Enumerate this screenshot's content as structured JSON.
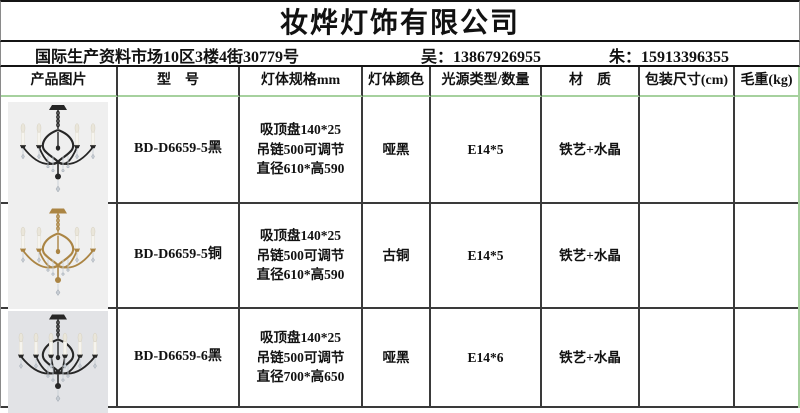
{
  "company": {
    "title": "妆烨灯饰有限公司"
  },
  "contact": {
    "address": "国际生产资料市场10区3楼4街30779号",
    "phone_wu": "吴：13867926955",
    "phone_zhu": "朱：15913396355"
  },
  "table": {
    "headers": [
      "产品图片",
      "型　号",
      "灯体规格mm",
      "灯体颜色",
      "光源类型/数量",
      "材　质",
      "包装尺寸(cm)",
      "毛重(kg)"
    ]
  },
  "products": [
    {
      "model": "BD-D6659-5黑",
      "spec_line1": "吸顶盘140*25",
      "spec_line2": "吊链500可调节",
      "spec_line3": "直径610*高590",
      "body_color": "哑黑",
      "light_source": "E14*5",
      "material": "铁艺+水晶",
      "package_size": "",
      "gross_weight": "",
      "image": {
        "name": "black-iron-crystal-chandelier-5-light",
        "frame_color": "#262626",
        "bg_color": "#efefef",
        "lights": 5
      }
    },
    {
      "model": "BD-D6659-5铜",
      "spec_line1": "吸顶盘140*25",
      "spec_line2": "吊链500可调节",
      "spec_line3": "直径610*高590",
      "body_color": "古铜",
      "light_source": "E14*5",
      "material": "铁艺+水晶",
      "package_size": "",
      "gross_weight": "",
      "image": {
        "name": "bronze-iron-crystal-chandelier-5-light",
        "frame_color": "#ab8544",
        "bg_color": "#efefef",
        "lights": 5
      }
    },
    {
      "model": "BD-D6659-6黑",
      "spec_line1": "吸顶盘140*25",
      "spec_line2": "吊链500可调节",
      "spec_line3": "直径700*高650",
      "body_color": "哑黑",
      "light_source": "E14*6",
      "material": "铁艺+水晶",
      "package_size": "",
      "gross_weight": "",
      "image": {
        "name": "black-iron-crystal-chandelier-6-light",
        "frame_color": "#272727",
        "bg_color": "#e2e3e6",
        "lights": 6
      }
    }
  ],
  "colors": {
    "accent_green_border": "#a6d19e",
    "row_border_dark": "#3a3a3a",
    "outer_border_black": "#141414",
    "crystal": "#c6ccd3",
    "candle": "#f6f4ee"
  }
}
